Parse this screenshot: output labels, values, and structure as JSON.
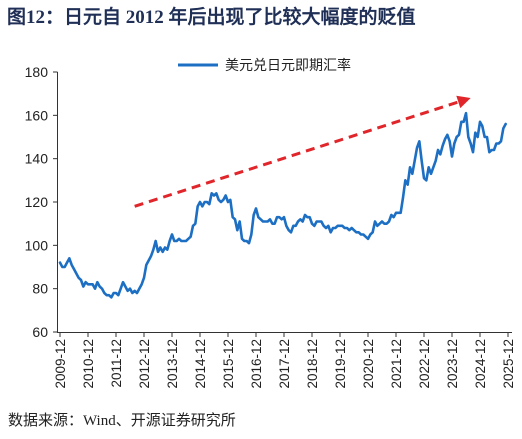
{
  "figure": {
    "source": "数据来源：Wind、开源证券研究所"
  },
  "colors": {
    "title": "#1f2f56",
    "series": "#1d6fc3",
    "arrow": "#e0262b",
    "axis": "#333333"
  },
  "chart_data": {
    "type": "line",
    "title": "图12：日元自 2012 年后出现了比较大幅度的贬值",
    "xlabel": "",
    "ylabel": "",
    "legend": "top",
    "grid": false,
    "ylim": [
      60,
      180
    ],
    "xlim": [
      "2009-12",
      "2025-12"
    ],
    "y_ticks": [
      60,
      80,
      100,
      120,
      140,
      160,
      180
    ],
    "x_ticks": [
      "2009-12",
      "2010-12",
      "2011-12",
      "2012-12",
      "2013-12",
      "2014-12",
      "2015-12",
      "2016-12",
      "2017-12",
      "2018-12",
      "2019-12",
      "2020-12",
      "2021-12",
      "2022-12",
      "2023-12",
      "2024-12",
      "2025-12"
    ],
    "series": [
      {
        "name": "美元兑日元即期汇率",
        "x": [
          "2009-12",
          "2010-01",
          "2010-02",
          "2010-03",
          "2010-04",
          "2010-05",
          "2010-06",
          "2010-07",
          "2010-08",
          "2010-09",
          "2010-10",
          "2010-11",
          "2010-12",
          "2011-01",
          "2011-02",
          "2011-03",
          "2011-04",
          "2011-05",
          "2011-06",
          "2011-07",
          "2011-08",
          "2011-09",
          "2011-10",
          "2011-11",
          "2011-12",
          "2012-01",
          "2012-02",
          "2012-03",
          "2012-04",
          "2012-05",
          "2012-06",
          "2012-07",
          "2012-08",
          "2012-09",
          "2012-10",
          "2012-11",
          "2012-12",
          "2013-01",
          "2013-02",
          "2013-03",
          "2013-04",
          "2013-05",
          "2013-06",
          "2013-07",
          "2013-08",
          "2013-09",
          "2013-10",
          "2013-11",
          "2013-12",
          "2014-01",
          "2014-02",
          "2014-03",
          "2014-04",
          "2014-05",
          "2014-06",
          "2014-07",
          "2014-08",
          "2014-09",
          "2014-10",
          "2014-11",
          "2014-12",
          "2015-01",
          "2015-02",
          "2015-03",
          "2015-04",
          "2015-05",
          "2015-06",
          "2015-07",
          "2015-08",
          "2015-09",
          "2015-10",
          "2015-11",
          "2015-12",
          "2016-01",
          "2016-02",
          "2016-03",
          "2016-04",
          "2016-05",
          "2016-06",
          "2016-07",
          "2016-08",
          "2016-09",
          "2016-10",
          "2016-11",
          "2016-12",
          "2017-01",
          "2017-02",
          "2017-03",
          "2017-04",
          "2017-05",
          "2017-06",
          "2017-07",
          "2017-08",
          "2017-09",
          "2017-10",
          "2017-11",
          "2017-12",
          "2018-01",
          "2018-02",
          "2018-03",
          "2018-04",
          "2018-05",
          "2018-06",
          "2018-07",
          "2018-08",
          "2018-09",
          "2018-10",
          "2018-11",
          "2018-12",
          "2019-01",
          "2019-02",
          "2019-03",
          "2019-04",
          "2019-05",
          "2019-06",
          "2019-07",
          "2019-08",
          "2019-09",
          "2019-10",
          "2019-11",
          "2019-12",
          "2020-01",
          "2020-02",
          "2020-03",
          "2020-04",
          "2020-05",
          "2020-06",
          "2020-07",
          "2020-08",
          "2020-09",
          "2020-10",
          "2020-11",
          "2020-12",
          "2021-01",
          "2021-02",
          "2021-03",
          "2021-04",
          "2021-05",
          "2021-06",
          "2021-07",
          "2021-08",
          "2021-09",
          "2021-10",
          "2021-11",
          "2021-12",
          "2022-01",
          "2022-02",
          "2022-03",
          "2022-04",
          "2022-05",
          "2022-06",
          "2022-07",
          "2022-08",
          "2022-09",
          "2022-10",
          "2022-11",
          "2022-12",
          "2023-01",
          "2023-02",
          "2023-03",
          "2023-04",
          "2023-05",
          "2023-06",
          "2023-07",
          "2023-08",
          "2023-09",
          "2023-10",
          "2023-11",
          "2023-12",
          "2024-01",
          "2024-02",
          "2024-03",
          "2024-04",
          "2024-05",
          "2024-06",
          "2024-07",
          "2024-08",
          "2024-09",
          "2024-10",
          "2024-11",
          "2024-12",
          "2025-01",
          "2025-02",
          "2025-03",
          "2025-04",
          "2025-05",
          "2025-06",
          "2025-07",
          "2025-08",
          "2025-09",
          "2025-10",
          "2025-11"
        ],
        "values": [
          92,
          90,
          90,
          92,
          94,
          91,
          89,
          87,
          85,
          84,
          81,
          83,
          82,
          82,
          82,
          80,
          83,
          81,
          80,
          78,
          77,
          77,
          76,
          78,
          78,
          77,
          80,
          83,
          81,
          79,
          80,
          78,
          79,
          78,
          80,
          82,
          85,
          91,
          93,
          95,
          98,
          102,
          97,
          99,
          97,
          99,
          98,
          102,
          105,
          102,
          102,
          103,
          102,
          102,
          102,
          103,
          104,
          109,
          110,
          118,
          120,
          118,
          120,
          120,
          119,
          124,
          123,
          124,
          121,
          120,
          121,
          123,
          120,
          121,
          113,
          112,
          107,
          111,
          103,
          102,
          102,
          101,
          105,
          114,
          117,
          113,
          112,
          111,
          111,
          111,
          112,
          110,
          110,
          113,
          113,
          112,
          113,
          109,
          107,
          106,
          109,
          109,
          111,
          112,
          111,
          114,
          113,
          113,
          110,
          109,
          111,
          111,
          111,
          109,
          108,
          109,
          106,
          108,
          108,
          109,
          109,
          109,
          108,
          108,
          107,
          108,
          107,
          106,
          106,
          105,
          105,
          104,
          103,
          105,
          106,
          111,
          109,
          110,
          111,
          110,
          110,
          111,
          114,
          113,
          115,
          115,
          115,
          122,
          130,
          128,
          136,
          133,
          139,
          145,
          148,
          139,
          131,
          130,
          136,
          133,
          136,
          139,
          144,
          142,
          146,
          149,
          151,
          148,
          141,
          147,
          150,
          151,
          157,
          157,
          161,
          150,
          147,
          143,
          152,
          150,
          157,
          155,
          150,
          150,
          143,
          144,
          144,
          147,
          147,
          148,
          154,
          156
        ]
      }
    ],
    "annotations": [
      {
        "type": "arrow",
        "style": "dashed",
        "from": {
          "x": "2012-08",
          "y": 118
        },
        "to": {
          "x": "2024-08",
          "y": 168
        }
      }
    ]
  }
}
